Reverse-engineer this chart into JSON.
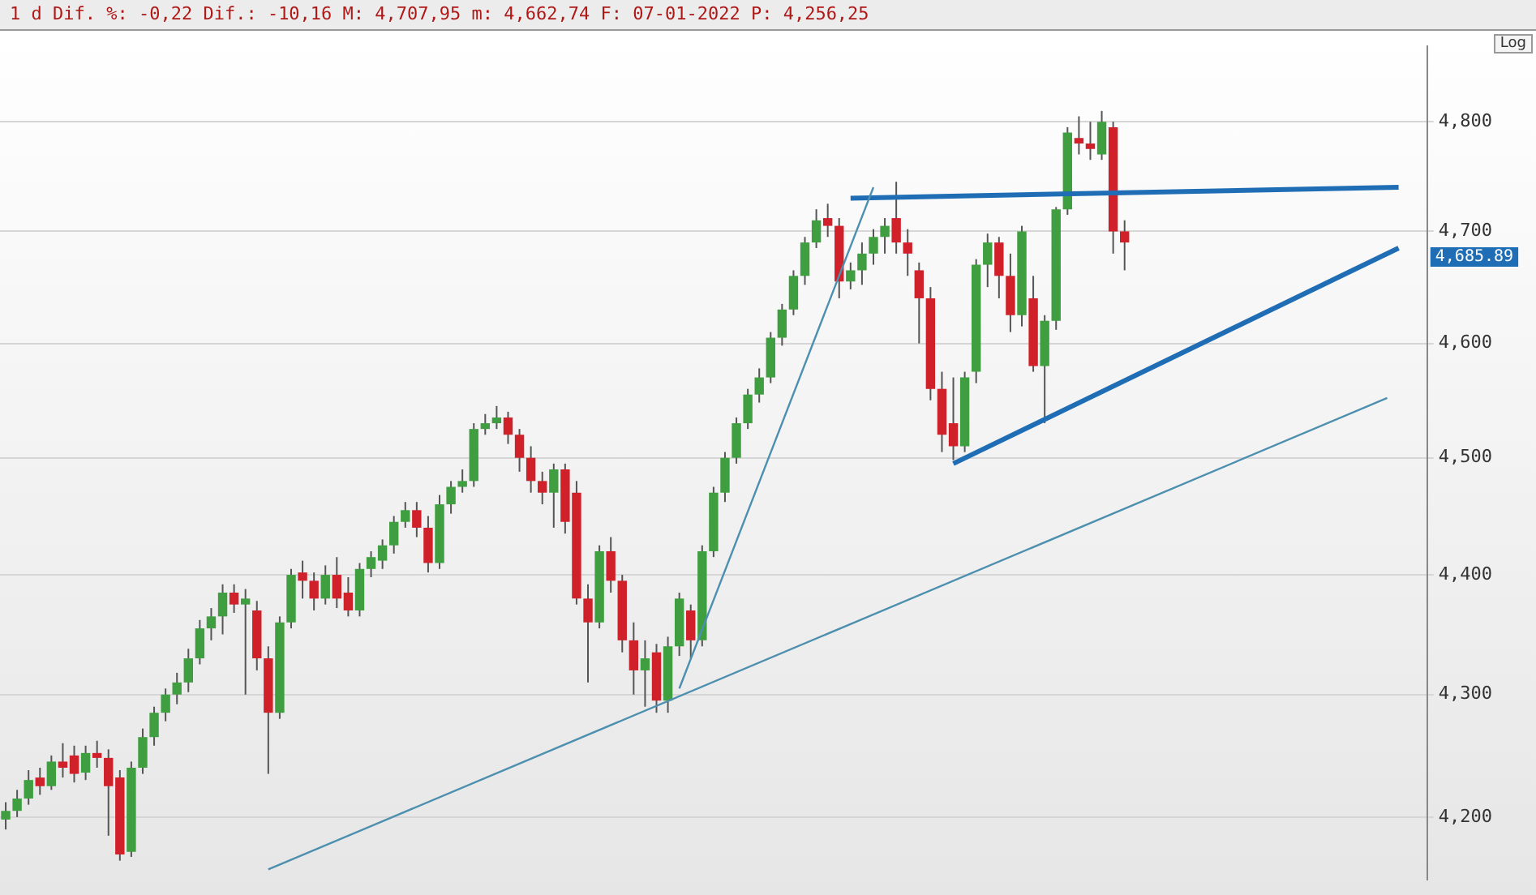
{
  "chart_data": {
    "type": "candlestick",
    "title": "1 d Dif. %: -0,22 Dif.: -10,16 M: 4,707,95 m: 4,662,74 F: 07-01-2022 P: 4,256,25",
    "categories": [
      null,
      null,
      null,
      null,
      null,
      null,
      null,
      null,
      null,
      null,
      null,
      null,
      null,
      null,
      null,
      null,
      null,
      null,
      null,
      null,
      null,
      null,
      null,
      null,
      null,
      null,
      null,
      null,
      null,
      null,
      null,
      null,
      null,
      null,
      null,
      null,
      null,
      null,
      null,
      null,
      null,
      null,
      null,
      null,
      null,
      null,
      null,
      null,
      null,
      null,
      null,
      null,
      null,
      null,
      null,
      null,
      null,
      null,
      null,
      null,
      null,
      null,
      null,
      null,
      null,
      null,
      null,
      null,
      null,
      null,
      null,
      null,
      null,
      null,
      null,
      null,
      null,
      null,
      null,
      null,
      null,
      null,
      null,
      null,
      null,
      null,
      null,
      null,
      null,
      null,
      null,
      null,
      null,
      null,
      null,
      null,
      null,
      null,
      null,
      null,
      null,
      null,
      null,
      null,
      null,
      null,
      null,
      null,
      null,
      null,
      null,
      null,
      null,
      null,
      null,
      null,
      null,
      null,
      null,
      null,
      null,
      null,
      null,
      null,
      null
    ],
    "ohlc": [
      [
        4198,
        4212,
        4190,
        4205
      ],
      [
        4205,
        4222,
        4200,
        4215
      ],
      [
        4215,
        4238,
        4210,
        4230
      ],
      [
        4232,
        4240,
        4218,
        4225
      ],
      [
        4225,
        4250,
        4222,
        4245
      ],
      [
        4245,
        4260,
        4232,
        4240
      ],
      [
        4250,
        4258,
        4228,
        4235
      ],
      [
        4236,
        4258,
        4230,
        4252
      ],
      [
        4252,
        4262,
        4240,
        4248
      ],
      [
        4248,
        4255,
        4185,
        4225
      ],
      [
        4232,
        4238,
        4165,
        4170
      ],
      [
        4172,
        4245,
        4168,
        4240
      ],
      [
        4240,
        4272,
        4235,
        4265
      ],
      [
        4265,
        4290,
        4258,
        4285
      ],
      [
        4285,
        4305,
        4278,
        4300
      ],
      [
        4300,
        4318,
        4292,
        4310
      ],
      [
        4310,
        4338,
        4302,
        4330
      ],
      [
        4330,
        4362,
        4325,
        4355
      ],
      [
        4355,
        4372,
        4345,
        4365
      ],
      [
        4365,
        4392,
        4350,
        4385
      ],
      [
        4385,
        4392,
        4368,
        4375
      ],
      [
        4375,
        4388,
        4300,
        4380
      ],
      [
        4370,
        4378,
        4320,
        4330
      ],
      [
        4330,
        4340,
        4235,
        4285
      ],
      [
        4285,
        4365,
        4280,
        4360
      ],
      [
        4360,
        4405,
        4355,
        4400
      ],
      [
        4402,
        4412,
        4380,
        4395
      ],
      [
        4395,
        4402,
        4370,
        4380
      ],
      [
        4380,
        4408,
        4375,
        4400
      ],
      [
        4400,
        4415,
        4372,
        4380
      ],
      [
        4385,
        4398,
        4365,
        4370
      ],
      [
        4370,
        4410,
        4365,
        4405
      ],
      [
        4405,
        4420,
        4398,
        4415
      ],
      [
        4412,
        4430,
        4405,
        4425
      ],
      [
        4425,
        4450,
        4418,
        4445
      ],
      [
        4445,
        4462,
        4440,
        4455
      ],
      [
        4455,
        4462,
        4432,
        4440
      ],
      [
        4440,
        4450,
        4402,
        4410
      ],
      [
        4410,
        4468,
        4405,
        4460
      ],
      [
        4460,
        4480,
        4452,
        4475
      ],
      [
        4475,
        4490,
        4470,
        4480
      ],
      [
        4480,
        4530,
        4475,
        4525
      ],
      [
        4525,
        4538,
        4520,
        4530
      ],
      [
        4530,
        4545,
        4525,
        4535
      ],
      [
        4535,
        4540,
        4512,
        4520
      ],
      [
        4520,
        4525,
        4488,
        4500
      ],
      [
        4500,
        4510,
        4470,
        4480
      ],
      [
        4480,
        4488,
        4460,
        4470
      ],
      [
        4470,
        4495,
        4440,
        4490
      ],
      [
        4490,
        4495,
        4435,
        4445
      ],
      [
        4470,
        4480,
        4375,
        4380
      ],
      [
        4380,
        4392,
        4310,
        4360
      ],
      [
        4360,
        4425,
        4355,
        4420
      ],
      [
        4420,
        4432,
        4385,
        4395
      ],
      [
        4395,
        4400,
        4335,
        4345
      ],
      [
        4345,
        4360,
        4300,
        4320
      ],
      [
        4320,
        4345,
        4290,
        4330
      ],
      [
        4335,
        4342,
        4285,
        4295
      ],
      [
        4295,
        4348,
        4285,
        4340
      ],
      [
        4340,
        4385,
        4332,
        4380
      ],
      [
        4370,
        4375,
        4330,
        4345
      ],
      [
        4345,
        4425,
        4340,
        4420
      ],
      [
        4420,
        4475,
        4415,
        4470
      ],
      [
        4470,
        4505,
        4462,
        4500
      ],
      [
        4500,
        4535,
        4495,
        4530
      ],
      [
        4530,
        4560,
        4525,
        4555
      ],
      [
        4555,
        4578,
        4548,
        4570
      ],
      [
        4570,
        4610,
        4565,
        4605
      ],
      [
        4605,
        4635,
        4598,
        4630
      ],
      [
        4630,
        4665,
        4625,
        4660
      ],
      [
        4660,
        4695,
        4652,
        4690
      ],
      [
        4690,
        4720,
        4685,
        4710
      ],
      [
        4712,
        4725,
        4695,
        4705
      ],
      [
        4705,
        4712,
        4640,
        4655
      ],
      [
        4655,
        4672,
        4648,
        4665
      ],
      [
        4665,
        4690,
        4652,
        4680
      ],
      [
        4680,
        4702,
        4670,
        4695
      ],
      [
        4695,
        4712,
        4680,
        4705
      ],
      [
        4712,
        4745,
        4680,
        4690
      ],
      [
        4690,
        4702,
        4660,
        4680
      ],
      [
        4665,
        4672,
        4600,
        4640
      ],
      [
        4640,
        4650,
        4550,
        4560
      ],
      [
        4560,
        4575,
        4505,
        4520
      ],
      [
        4530,
        4570,
        4498,
        4510
      ],
      [
        4510,
        4575,
        4505,
        4570
      ],
      [
        4575,
        4675,
        4565,
        4670
      ],
      [
        4670,
        4698,
        4650,
        4690
      ],
      [
        4690,
        4695,
        4640,
        4660
      ],
      [
        4660,
        4680,
        4610,
        4625
      ],
      [
        4625,
        4705,
        4615,
        4700
      ],
      [
        4640,
        4660,
        4575,
        4580
      ],
      [
        4580,
        4625,
        4530,
        4620
      ],
      [
        4620,
        4722,
        4612,
        4720
      ],
      [
        4720,
        4795,
        4715,
        4790
      ],
      [
        4785,
        4805,
        4770,
        4780
      ],
      [
        4780,
        4800,
        4765,
        4775
      ],
      [
        4770,
        4810,
        4765,
        4800
      ],
      [
        4795,
        4800,
        4680,
        4700
      ],
      [
        4700,
        4710,
        4665,
        4690
      ],
      null,
      null,
      null,
      null,
      null,
      null,
      null,
      null,
      null,
      null,
      null,
      null,
      null,
      null,
      null,
      null,
      null,
      null,
      null,
      null,
      null,
      null,
      null,
      null,
      null,
      null
    ],
    "series": [
      {
        "type": "line",
        "color": "#4d8fae",
        "values": [
          null,
          null,
          null,
          null,
          null,
          null,
          null,
          null,
          null,
          null,
          null,
          null,
          null,
          null,
          null,
          null,
          null,
          null,
          null,
          null,
          null,
          null,
          null,
          null,
          null,
          null,
          null,
          null,
          null,
          null,
          null,
          null,
          null,
          null,
          null,
          null,
          null,
          null,
          null,
          null,
          null,
          null,
          null,
          null,
          null,
          null,
          null,
          null,
          null,
          null,
          null,
          null,
          null,
          null,
          null,
          null,
          null,
          null,
          null,
          4305,
          null,
          null,
          null,
          null,
          null,
          null,
          null,
          null,
          null,
          null,
          null,
          null,
          null,
          null,
          null,
          null,
          4740,
          null,
          null,
          null,
          null,
          null,
          null,
          null,
          null,
          null,
          null,
          null,
          null,
          null,
          null,
          null,
          null,
          null,
          null,
          null,
          null,
          null,
          null,
          null,
          null,
          null,
          null,
          null,
          null,
          null,
          null,
          null,
          null,
          null,
          null,
          null,
          null,
          null,
          null,
          null,
          null,
          null,
          null,
          null,
          null,
          null,
          null,
          null,
          null
        ]
      },
      {
        "type": "line",
        "color": "#1f6db4",
        "values": [
          null,
          null,
          null,
          null,
          null,
          null,
          null,
          null,
          null,
          null,
          null,
          null,
          null,
          null,
          null,
          null,
          null,
          null,
          null,
          null,
          null,
          null,
          null,
          null,
          null,
          null,
          null,
          null,
          null,
          null,
          null,
          null,
          null,
          null,
          null,
          null,
          null,
          null,
          null,
          null,
          null,
          null,
          null,
          null,
          null,
          null,
          null,
          null,
          null,
          null,
          null,
          null,
          null,
          null,
          null,
          null,
          null,
          null,
          null,
          null,
          null,
          null,
          null,
          null,
          null,
          null,
          null,
          null,
          null,
          null,
          null,
          null,
          null,
          null,
          4730,
          null,
          null,
          null,
          null,
          null,
          null,
          null,
          null,
          null,
          null,
          null,
          null,
          null,
          null,
          null,
          null,
          null,
          null,
          null,
          null,
          null,
          null,
          null,
          null,
          null,
          null,
          null,
          null,
          null,
          null,
          null,
          null,
          null,
          null,
          null,
          null,
          null,
          null,
          null,
          null,
          null,
          null,
          null,
          null,
          null,
          null,
          null,
          4740,
          null,
          null
        ]
      },
      {
        "type": "line",
        "color": "#1f6db4",
        "values": [
          null,
          null,
          null,
          null,
          null,
          null,
          null,
          null,
          null,
          null,
          null,
          null,
          null,
          null,
          null,
          null,
          null,
          null,
          null,
          null,
          null,
          null,
          null,
          null,
          null,
          null,
          null,
          null,
          null,
          null,
          null,
          null,
          null,
          null,
          null,
          null,
          null,
          null,
          null,
          null,
          null,
          null,
          null,
          null,
          null,
          null,
          null,
          null,
          null,
          null,
          null,
          null,
          null,
          null,
          null,
          null,
          null,
          null,
          null,
          null,
          null,
          null,
          null,
          null,
          null,
          null,
          null,
          null,
          null,
          null,
          null,
          null,
          null,
          null,
          null,
          null,
          null,
          null,
          null,
          null,
          null,
          null,
          null,
          4495,
          null,
          null,
          null,
          null,
          null,
          null,
          null,
          null,
          null,
          null,
          null,
          null,
          null,
          null,
          null,
          null,
          null,
          null,
          null,
          null,
          null,
          null,
          null,
          null,
          null,
          null,
          null,
          null,
          null,
          null,
          null,
          null,
          null,
          null,
          null,
          null,
          null,
          null,
          4685,
          null,
          null
        ]
      },
      {
        "type": "line",
        "color": "#4d8fae",
        "values": [
          null,
          null,
          null,
          null,
          null,
          null,
          null,
          null,
          null,
          null,
          null,
          null,
          null,
          null,
          null,
          null,
          null,
          null,
          null,
          null,
          null,
          null,
          null,
          4158,
          null,
          null,
          null,
          null,
          null,
          null,
          null,
          null,
          null,
          null,
          null,
          null,
          null,
          null,
          null,
          null,
          null,
          null,
          null,
          null,
          null,
          null,
          null,
          null,
          null,
          null,
          null,
          null,
          null,
          null,
          null,
          null,
          null,
          null,
          null,
          null,
          null,
          null,
          null,
          null,
          null,
          null,
          null,
          null,
          null,
          null,
          null,
          null,
          null,
          null,
          null,
          null,
          null,
          null,
          null,
          null,
          null,
          null,
          null,
          null,
          null,
          null,
          null,
          null,
          null,
          null,
          null,
          null,
          null,
          null,
          null,
          null,
          null,
          null,
          null,
          null,
          null,
          null,
          null,
          null,
          null,
          null,
          null,
          null,
          null,
          null,
          null,
          null,
          null,
          null,
          null,
          null,
          null,
          null,
          null,
          null,
          null,
          4552,
          null,
          null,
          null
        ]
      }
    ],
    "ylim": [
      4150,
      4870
    ],
    "yticks": [
      {
        "value": 4200,
        "label": "4,200"
      },
      {
        "value": 4300,
        "label": "4,300"
      },
      {
        "value": 4400,
        "label": "4,400"
      },
      {
        "value": 4500,
        "label": "4,500"
      },
      {
        "value": 4600,
        "label": "4,600"
      },
      {
        "value": 4700,
        "label": "4,700"
      },
      {
        "value": 4800,
        "label": "4,800"
      }
    ],
    "log": true,
    "grid": "y",
    "legend": false,
    "tick_labels": "y",
    "annotations": [
      "4,685.89",
      "Log"
    ]
  }
}
